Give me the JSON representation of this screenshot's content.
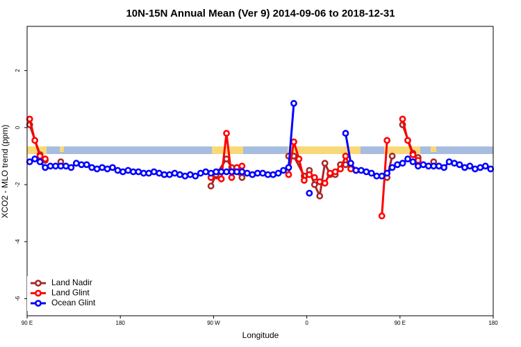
{
  "chart_data": {
    "type": "line",
    "title": "10N-15N Annual Mean (Ver 9)   2014-09-06 to 2018-12-31",
    "xlabel": "Longitude",
    "ylabel": "XCO2 - MLO trend (ppm)",
    "xlim": [
      90,
      540
    ],
    "ylim": [
      -6.6,
      3.55
    ],
    "xticks": [
      {
        "value": 90,
        "label": "90 E"
      },
      {
        "value": 180,
        "label": "180"
      },
      {
        "value": 270,
        "label": "90 W"
      },
      {
        "value": 360,
        "label": "0"
      },
      {
        "value": 450,
        "label": "90 E"
      },
      {
        "value": 540,
        "label": "180"
      }
    ],
    "yticks": [
      2,
      0,
      -2,
      -4,
      -6
    ],
    "legend": "bottom-left",
    "series": [
      {
        "name": "Land Nadir",
        "color": "#a52a2a",
        "x": [
          92.5,
          102.5,
          107.5,
          112.5,
          122.5,
          127.5,
          267.5,
          272.5,
          282.5,
          287.5,
          297.5,
          302.5,
          342.5,
          347.5,
          357.5,
          362.5,
          367.5,
          372.5,
          377.5,
          382.5,
          387.5,
          392.5,
          397.5,
          407.5,
          412.5,
          437.5,
          442.5,
          447.5,
          452.5,
          462.5,
          467.5,
          472.5,
          482.5
        ],
        "values": [
          0.1,
          -0.95,
          -1.15,
          null,
          -1.2,
          null,
          -2.05,
          -1.65,
          -1.1,
          -1.4,
          -1.75,
          null,
          -1.0,
          -1.0,
          -1.7,
          -1.5,
          -2.0,
          -2.4,
          -1.25,
          -1.65,
          -1.65,
          -1.3,
          -1.3,
          -1.5,
          null,
          -1.75,
          -1.0,
          null,
          0.1,
          -0.9,
          -1.05,
          null,
          -1.2
        ]
      },
      {
        "name": "Land Glint",
        "color": "#ff0000",
        "x": [
          92.5,
          97.5,
          102.5,
          107.5,
          112.5,
          267.5,
          277.5,
          282.5,
          287.5,
          292.5,
          297.5,
          302.5,
          342.5,
          347.5,
          352.5,
          357.5,
          362.5,
          367.5,
          372.5,
          377.5,
          382.5,
          387.5,
          392.5,
          397.5,
          402.5,
          407.5,
          412.5,
          432.5,
          437.5,
          447.5,
          452.5,
          457.5,
          462.5,
          467.5
        ],
        "values": [
          0.3,
          -0.45,
          -1.0,
          -1.1,
          null,
          -1.75,
          -1.8,
          -0.2,
          -1.75,
          -1.4,
          -1.35,
          null,
          -1.65,
          -0.5,
          -1.1,
          -1.85,
          -1.65,
          -1.75,
          -1.9,
          -1.95,
          -1.6,
          -1.55,
          -1.45,
          -1.0,
          -1.45,
          -1.5,
          null,
          -3.1,
          -0.45,
          null,
          0.3,
          -0.45,
          -0.95,
          -1.15
        ]
      },
      {
        "name": "Ocean Glint",
        "color": "#0000ff",
        "x": [
          92.5,
          97.5,
          102.5,
          107.5,
          112.5,
          117.5,
          122.5,
          127.5,
          132.5,
          137.5,
          142.5,
          147.5,
          152.5,
          157.5,
          162.5,
          167.5,
          172.5,
          177.5,
          182.5,
          187.5,
          192.5,
          197.5,
          202.5,
          207.5,
          212.5,
          217.5,
          222.5,
          227.5,
          232.5,
          237.5,
          242.5,
          247.5,
          252.5,
          257.5,
          262.5,
          267.5,
          272.5,
          277.5,
          282.5,
          287.5,
          292.5,
          297.5,
          302.5,
          307.5,
          312.5,
          317.5,
          322.5,
          327.5,
          332.5,
          337.5,
          342.5,
          347.5,
          352.5,
          362.5,
          367.5,
          397.5,
          402.5,
          407.5,
          412.5,
          417.5,
          422.5,
          427.5,
          432.5,
          437.5,
          442.5,
          447.5,
          452.5,
          457.5,
          462.5,
          467.5,
          472.5,
          477.5,
          482.5,
          487.5,
          492.5,
          497.5,
          502.5,
          507.5,
          512.5,
          517.5,
          522.5,
          527.5,
          532.5,
          537.5
        ],
        "values": [
          -1.2,
          -1.1,
          -1.2,
          -1.4,
          -1.35,
          -1.35,
          -1.35,
          -1.35,
          -1.4,
          -1.25,
          -1.3,
          -1.3,
          -1.4,
          -1.45,
          -1.4,
          -1.45,
          -1.4,
          -1.5,
          -1.55,
          -1.5,
          -1.55,
          -1.55,
          -1.6,
          -1.6,
          -1.55,
          -1.6,
          -1.65,
          -1.65,
          -1.6,
          -1.65,
          -1.7,
          -1.65,
          -1.7,
          -1.6,
          -1.55,
          -1.6,
          -1.55,
          -1.55,
          -1.55,
          -1.55,
          -1.55,
          -1.55,
          -1.6,
          -1.65,
          -1.6,
          -1.6,
          -1.65,
          -1.65,
          -1.6,
          -1.5,
          -1.4,
          0.85,
          null,
          -2.3,
          null,
          -0.2,
          -1.25,
          -1.5,
          -1.5,
          -1.55,
          -1.6,
          -1.7,
          -1.7,
          -1.6,
          -1.4,
          -1.3,
          -1.25,
          -1.1,
          -1.2,
          -1.35,
          -1.3,
          -1.35,
          -1.35,
          -1.35,
          -1.4,
          -1.2,
          -1.25,
          -1.3,
          -1.4,
          -1.35,
          -1.45,
          -1.4,
          -1.35,
          -1.45
        ]
      }
    ]
  }
}
